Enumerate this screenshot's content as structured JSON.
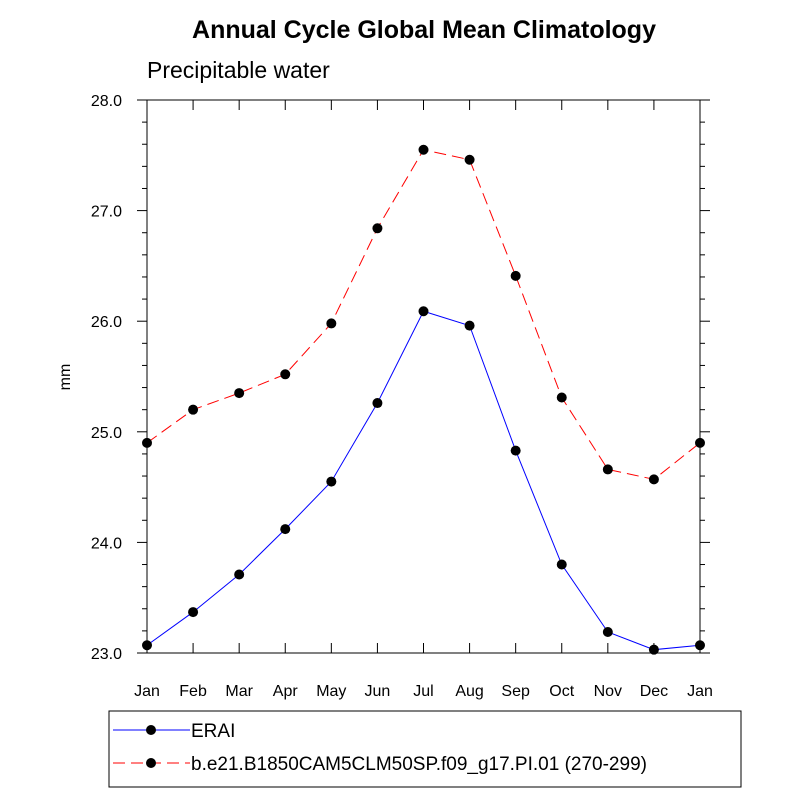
{
  "chart_data": {
    "type": "line",
    "title": "Annual Cycle Global Mean Climatology",
    "subtitle": "Precipitable water",
    "xlabel": "",
    "ylabel": "mm",
    "categories": [
      "Jan",
      "Feb",
      "Mar",
      "Apr",
      "May",
      "Jun",
      "Jul",
      "Aug",
      "Sep",
      "Oct",
      "Nov",
      "Dec",
      "Jan"
    ],
    "ylim": [
      23.0,
      28.0
    ],
    "yticks": [
      "23.0",
      "24.0",
      "25.0",
      "26.0",
      "27.0",
      "28.0"
    ],
    "series": [
      {
        "name": "ERAI",
        "color": "#0000ff",
        "dash": "solid",
        "marker": "filled-circle",
        "values": [
          23.07,
          23.37,
          23.71,
          24.12,
          24.55,
          25.26,
          26.09,
          25.96,
          24.83,
          23.8,
          23.19,
          23.03,
          23.07
        ]
      },
      {
        "name": "b.e21.B1850CAM5CLM50SP.f09_g17.PI.01 (270-299)",
        "color": "#ff0000",
        "dash": "dashed",
        "marker": "filled-circle",
        "values": [
          24.9,
          25.2,
          25.35,
          25.52,
          25.98,
          26.84,
          27.55,
          27.46,
          26.41,
          25.31,
          24.66,
          24.57,
          24.9
        ]
      }
    ],
    "legend_position": "bottom"
  }
}
